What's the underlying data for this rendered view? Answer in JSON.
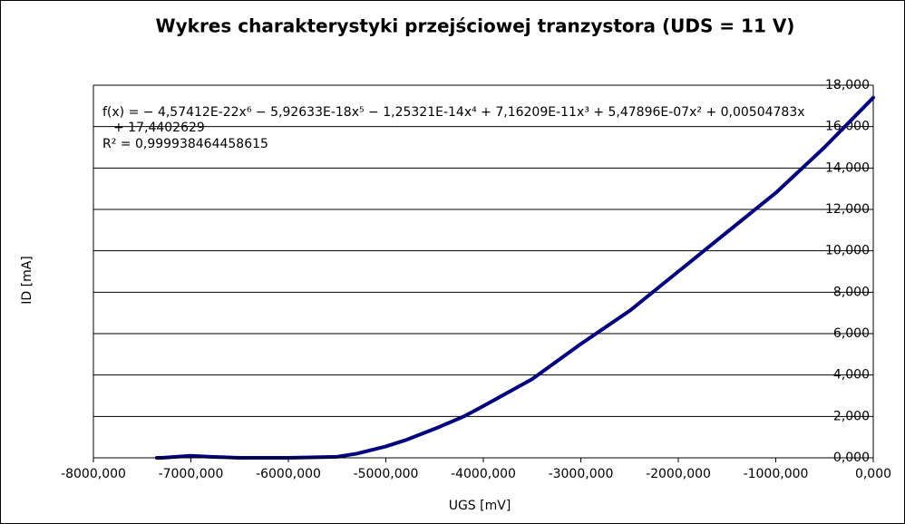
{
  "chart_data": {
    "type": "line",
    "title": "Wykres charakterystyki przejściowej tranzystora (UDS = 11 V)",
    "x_label": "UGS [mV]",
    "y_label": "ID [mA]",
    "annotations": [
      "f(x) = − 4,57412E-22x⁶ − 5,92633E-18x⁵ − 1,25321E-14x⁴ + 7,16209E-11x³ + 5,47896E-07x² + 0,00504783x",
      "+ 17,4402629",
      "R² = 0,999938464458615"
    ],
    "series": [
      {
        "name": "ID",
        "color": "#000080",
        "x": [
          -7350,
          -7300,
          -7000,
          -6800,
          -6500,
          -6000,
          -5500,
          -5300,
          -5000,
          -4800,
          -4500,
          -4200,
          -4000,
          -3500,
          -3000,
          -2500,
          -2000,
          -1500,
          -1000,
          -500,
          0
        ],
        "values": [
          0.0,
          0.0,
          0.1,
          0.05,
          0.0,
          0.0,
          0.05,
          0.2,
          0.55,
          0.85,
          1.4,
          2.0,
          2.5,
          3.8,
          5.5,
          7.1,
          9.0,
          10.9,
          12.8,
          15.0,
          17.4
        ]
      }
    ],
    "xlim": [
      -8000,
      0
    ],
    "xticks": [
      {
        "value": -8000,
        "label": "-8000,000"
      },
      {
        "value": -7000,
        "label": "-7000,000"
      },
      {
        "value": -6000,
        "label": "-6000,000"
      },
      {
        "value": -5000,
        "label": "-5000,000"
      },
      {
        "value": -4000,
        "label": "-4000,000"
      },
      {
        "value": -3000,
        "label": "-3000,000"
      },
      {
        "value": -2000,
        "label": "-2000,000"
      },
      {
        "value": -1000,
        "label": "-1000,000"
      },
      {
        "value": 0,
        "label": "0,000"
      }
    ],
    "ylim": [
      0,
      18
    ],
    "yticks": [
      {
        "value": 0,
        "label": "0,000"
      },
      {
        "value": 2,
        "label": "2,000"
      },
      {
        "value": 4,
        "label": "4,000"
      },
      {
        "value": 6,
        "label": "6,000"
      },
      {
        "value": 8,
        "label": "8,000"
      },
      {
        "value": 10,
        "label": "10,000"
      },
      {
        "value": 12,
        "label": "12,000"
      },
      {
        "value": 14,
        "label": "14,000"
      },
      {
        "value": 16,
        "label": "16,000"
      },
      {
        "value": 18,
        "label": "18,000"
      }
    ],
    "grid": true
  }
}
